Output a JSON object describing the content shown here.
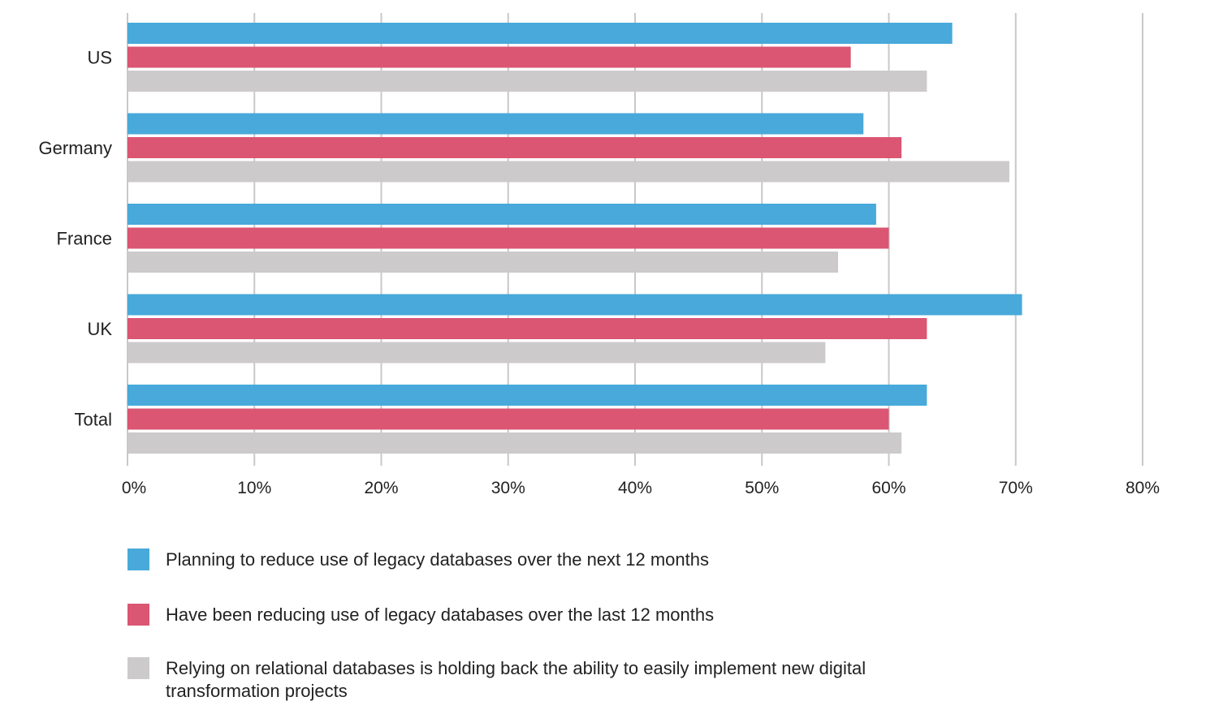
{
  "colors": {
    "series_0": "#48a9da",
    "series_1": "#da5672",
    "series_2": "#cccacb",
    "grid": "#c8c8c8",
    "text": "#222222"
  },
  "chart_data": {
    "type": "bar",
    "orientation": "horizontal",
    "categories": [
      "US",
      "Germany",
      "France",
      "UK",
      "Total"
    ],
    "series": [
      {
        "name": "Planning to reduce use of legacy databases over the next 12 months",
        "values": [
          65,
          58,
          59,
          70.5,
          63
        ]
      },
      {
        "name": "Have been reducing use of legacy databases over the last 12 months",
        "values": [
          57,
          61,
          60,
          63,
          60
        ]
      },
      {
        "name": "Relying on relational databases is holding back the ability to easily implement new digital transformation projects",
        "values": [
          63,
          69.5,
          56,
          55,
          61
        ]
      }
    ],
    "x_ticks": [
      "0%",
      "10%",
      "20%",
      "30%",
      "40%",
      "50%",
      "60%",
      "70%",
      "80%"
    ],
    "xlim": [
      0,
      80
    ],
    "grid": true,
    "legend_position": "bottom"
  }
}
